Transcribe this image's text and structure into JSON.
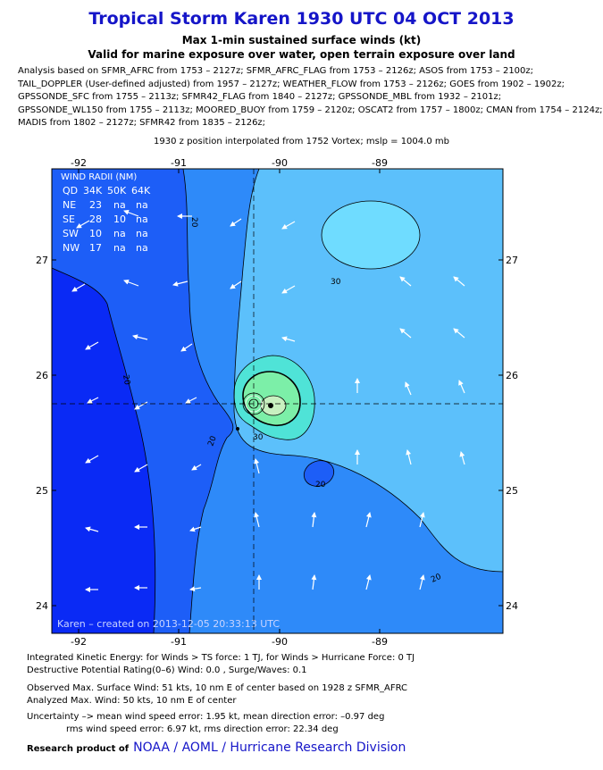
{
  "header": {
    "title": "Tropical Storm Karen 1930 UTC 04 OCT 2013",
    "subtitle1": "Max 1-min sustained surface winds (kt)",
    "subtitle2": "Valid for marine exposure over water, open terrain exposure over land"
  },
  "analysis_lines": [
    "Analysis based on SFMR_AFRC from 1753 – 2127z; SFMR_AFRC_FLAG from 1753 – 2126z; ASOS from 1753 – 2100z;",
    "TAIL_DOPPLER (User-defined adjusted) from 1957 – 2127z; WEATHER_FLOW from 1753 – 2126z; GOES from 1902 – 1902z;",
    "GPSSONDE_SFC from 1755 – 2113z; SFMR42_FLAG from 1840 – 2127z; GPSSONDE_MBL from 1932 – 2101z;",
    "GPSSONDE_WL150 from 1755 – 2113z; MOORED_BUOY from 1759 – 2120z; OSCAT2 from 1757 – 1800z; CMAN from 1754 – 2124z;",
    "MADIS from 1802 – 2127z; SFMR42 from 1835 – 2126z;"
  ],
  "position_line": "1930 z position interpolated from 1752 Vortex; mslp = 1004.0 mb",
  "map": {
    "lon_ticks": [
      "-92",
      "-91",
      "-90",
      "-89"
    ],
    "lat_ticks": [
      "27",
      "26",
      "25",
      "24"
    ],
    "contour_labels": [
      "20",
      "30",
      "30",
      "20",
      "20",
      "20",
      "20"
    ],
    "credit": "Karen – created on 2013-12-05 20:33:13 UTC",
    "wind_radii": {
      "title": "WIND RADII (NM)",
      "header": [
        "QD",
        "34K",
        "50K",
        "64K"
      ],
      "rows": [
        [
          "NE",
          "23",
          "na",
          "na"
        ],
        [
          "SE",
          "28",
          "10",
          "na"
        ],
        [
          "SW",
          "10",
          "na",
          "na"
        ],
        [
          "NW",
          "17",
          "na",
          "na"
        ]
      ]
    },
    "colors": {
      "lt20": "#0a2af5",
      "c20_25": "#1d5ef7",
      "c25_30": "#2e8af9",
      "c30_35": "#5cc0fb",
      "c35_40": "#6fdcff",
      "c40_45": "#4fe3d7",
      "c45_50": "#7cefa8",
      "core": "#c8f0c0"
    }
  },
  "footer": {
    "ike": "Integrated Kinetic Energy: for Winds > TS force: 1 TJ, for Winds > Hurricane Force: 0 TJ",
    "dpr": "Destructive Potential Rating(0–6)  Wind: 0.0 , Surge/Waves: 0.1",
    "observed": "Observed Max. Surface Wind: 51 kts, 10 nm E of center based on 1928 z SFMR_AFRC",
    "analyzed": "Analyzed Max. Wind: 50 kts, 10 nm  E of center",
    "uncertainty": "Uncertainty –> mean wind speed error: 1.95 kt, mean direction error:  –0.97 deg",
    "rms": "rms wind speed error: 6.97 kt, rms direction error: 22.34 deg",
    "research_label": "Research product of",
    "research_org": "NOAA  /  AOML  /  Hurricane Research Division"
  }
}
